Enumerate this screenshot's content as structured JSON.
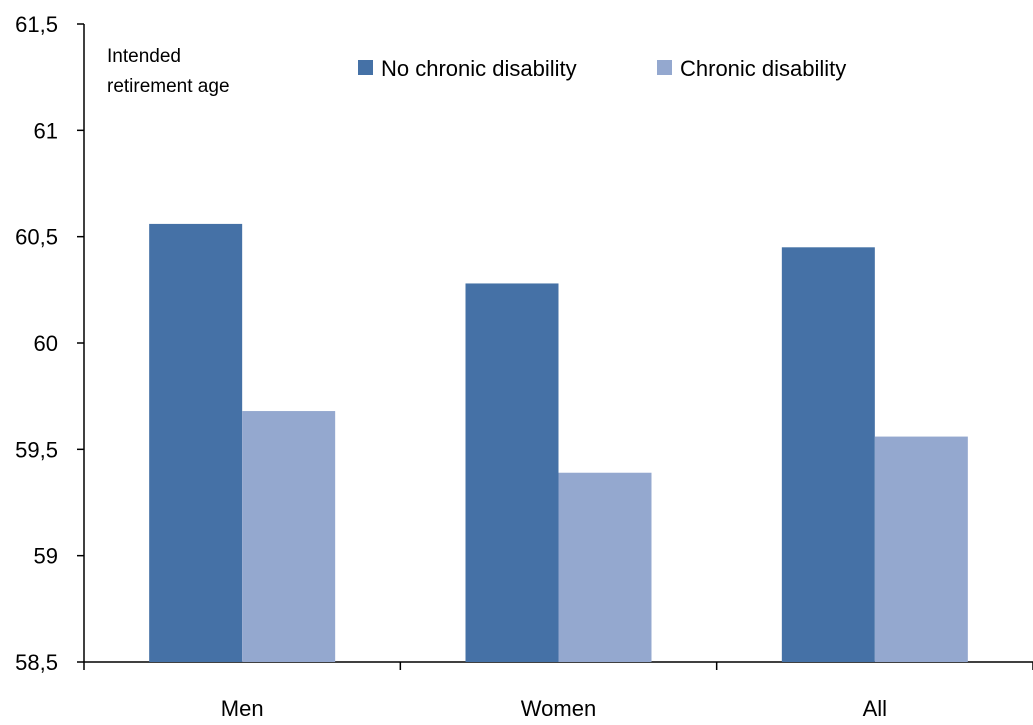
{
  "chart_data": {
    "type": "bar",
    "ylabel_lines": [
      "Intended",
      "retirement age"
    ],
    "categories": [
      "Men",
      "Women",
      "All"
    ],
    "series": [
      {
        "name": "No chronic disability",
        "color": "#4571a6",
        "values": [
          60.56,
          60.28,
          60.45
        ]
      },
      {
        "name": "Chronic disability",
        "color": "#94a8cf",
        "values": [
          59.68,
          59.39,
          59.56
        ]
      }
    ],
    "ylim": [
      58.5,
      61.5
    ],
    "yticks": [
      58.5,
      59,
      59.5,
      60,
      60.5,
      61,
      61.5
    ],
    "ytick_labels": [
      "58,5",
      "59",
      "59,5",
      "60",
      "60,5",
      "61",
      "61,5"
    ],
    "grid": false,
    "legend_position": "top"
  }
}
